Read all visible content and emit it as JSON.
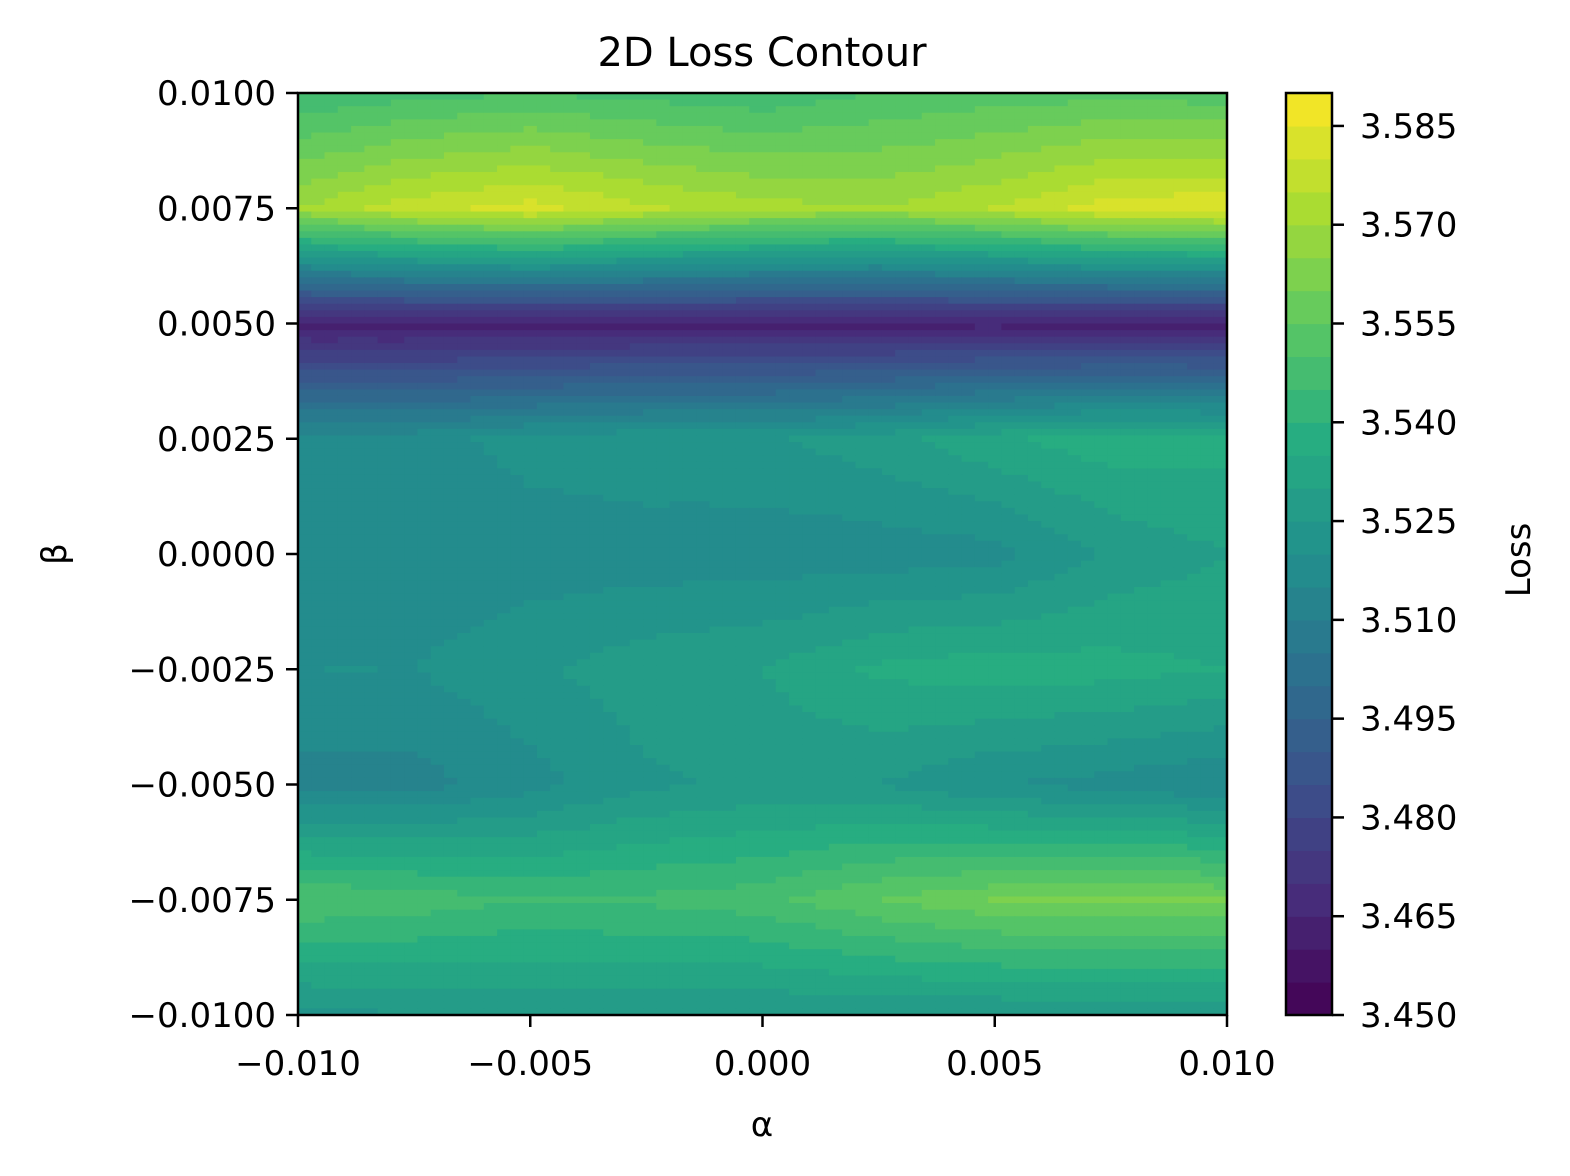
{
  "chart_data": {
    "type": "heatmap",
    "subtype": "filled-contour",
    "title": "2D Loss Contour",
    "xlabel": "α",
    "ylabel": "β",
    "xlim": [
      -0.01,
      0.01
    ],
    "ylim": [
      -0.01,
      0.01
    ],
    "x_ticks": [
      -0.01,
      -0.005,
      0.0,
      0.005,
      0.01
    ],
    "x_tick_labels": [
      "−0.010",
      "−0.005",
      "0.000",
      "0.005",
      "0.010"
    ],
    "y_ticks": [
      -0.01,
      -0.0075,
      -0.005,
      -0.0025,
      0.0,
      0.0025,
      0.005,
      0.0075,
      0.01
    ],
    "y_tick_labels": [
      "−0.0100",
      "−0.0075",
      "−0.0050",
      "−0.0025",
      "0.0000",
      "0.0025",
      "0.0050",
      "0.0075",
      "0.0100"
    ],
    "x": [
      -0.01,
      -0.0075,
      -0.005,
      -0.0025,
      0.0,
      0.0025,
      0.005,
      0.0075,
      0.01
    ],
    "y": [
      0.01,
      0.0075,
      0.005,
      0.0025,
      0.0,
      -0.0025,
      -0.005,
      -0.0075,
      -0.01
    ],
    "z": [
      [
        3.545,
        3.548,
        3.55,
        3.548,
        3.546,
        3.55,
        3.552,
        3.553,
        3.552
      ],
      [
        3.57,
        3.578,
        3.582,
        3.576,
        3.572,
        3.57,
        3.575,
        3.583,
        3.584
      ],
      [
        3.462,
        3.462,
        3.462,
        3.463,
        3.463,
        3.463,
        3.463,
        3.462,
        3.462
      ],
      [
        3.518,
        3.518,
        3.522,
        3.524,
        3.524,
        3.528,
        3.534,
        3.538,
        3.537
      ],
      [
        3.516,
        3.516,
        3.517,
        3.517,
        3.517,
        3.517,
        3.518,
        3.526,
        3.53
      ],
      [
        3.52,
        3.52,
        3.524,
        3.528,
        3.53,
        3.536,
        3.538,
        3.537,
        3.535
      ],
      [
        3.513,
        3.513,
        3.518,
        3.524,
        3.526,
        3.525,
        3.52,
        3.518,
        3.515
      ],
      [
        3.55,
        3.548,
        3.545,
        3.546,
        3.548,
        3.555,
        3.56,
        3.561,
        3.56
      ],
      [
        3.523,
        3.525,
        3.526,
        3.526,
        3.525,
        3.525,
        3.525,
        3.525,
        3.525
      ]
    ],
    "colormap": "viridis",
    "colorbar": {
      "label": "Loss",
      "range": [
        3.45,
        3.59
      ],
      "ticks": [
        3.45,
        3.465,
        3.48,
        3.495,
        3.51,
        3.525,
        3.54,
        3.555,
        3.57,
        3.585
      ],
      "tick_labels": [
        "3.450",
        "3.465",
        "3.480",
        "3.495",
        "3.510",
        "3.525",
        "3.540",
        "3.555",
        "3.570",
        "3.585"
      ]
    },
    "grid": false
  }
}
